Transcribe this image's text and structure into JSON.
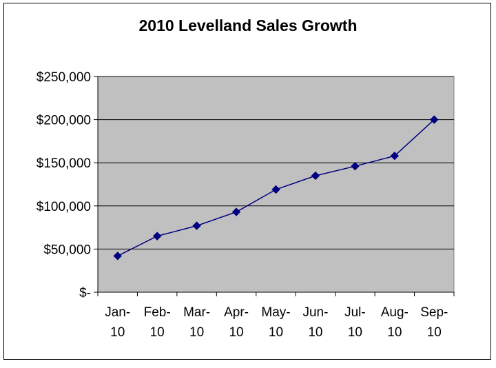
{
  "chart_data": {
    "type": "line",
    "title": "2010 Levelland Sales Growth",
    "categories": [
      [
        "Jan-",
        "10"
      ],
      [
        "Feb-",
        "10"
      ],
      [
        "Mar-",
        "10"
      ],
      [
        "Apr-",
        "10"
      ],
      [
        "May-",
        "10"
      ],
      [
        "Jun-",
        "10"
      ],
      [
        "Jul-",
        "10"
      ],
      [
        "Aug-",
        "10"
      ],
      [
        "Sep-",
        "10"
      ]
    ],
    "values": [
      42000,
      65000,
      77000,
      93000,
      119000,
      135000,
      146000,
      158000,
      200000
    ],
    "ylim": [
      0,
      250000
    ],
    "y_ticks": [
      {
        "value": 0,
        "label": "$-"
      },
      {
        "value": 50000,
        "label": "$50,000"
      },
      {
        "value": 100000,
        "label": "$100,000"
      },
      {
        "value": 150000,
        "label": "$150,000"
      },
      {
        "value": 200000,
        "label": "$200,000"
      },
      {
        "value": 250000,
        "label": "$250,000"
      }
    ],
    "grid": true,
    "legend": "none",
    "colors": {
      "line": "#000080",
      "marker": "#000080",
      "plot_bg": "#c0c0c0",
      "grid": "#000000"
    }
  }
}
